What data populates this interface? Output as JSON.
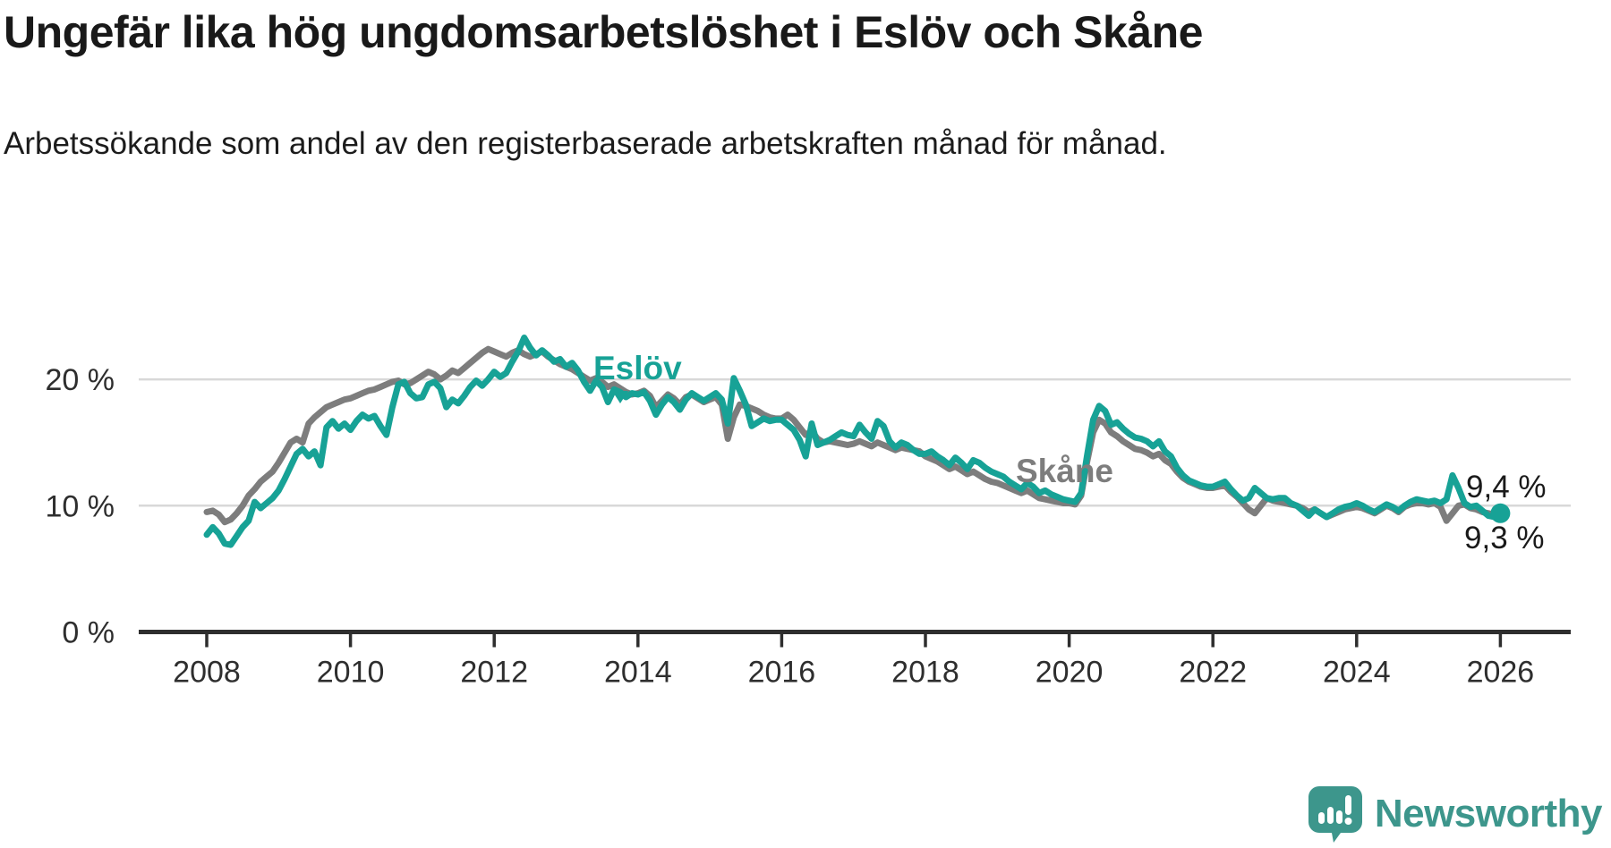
{
  "header": {
    "title": "Ungefär lika hög ungdomsarbetslöshet i Eslöv och Skåne",
    "subtitle": "Arbetssökande som andel av den registerbaserade arbetskraften månad för månad."
  },
  "annotations": {
    "eslov_label": "Eslöv",
    "skane_label": "Skåne",
    "end_value_eslov": "9,4 %",
    "end_value_skane": "9,3 %"
  },
  "footer": {
    "brand": "Newsworthy"
  },
  "chart_data": {
    "type": "line",
    "title": "Ungefär lika hög ungdomsarbetslöshet i Eslöv och Skåne",
    "xlabel": "",
    "ylabel": "Arbetssökande som andel av den registerbaserade arbetskraften",
    "x_start": "2008-01",
    "x_end": "2026-01",
    "frequency": "monthly",
    "x_ticks": [
      2008,
      2010,
      2012,
      2014,
      2016,
      2018,
      2020,
      2022,
      2024,
      2026
    ],
    "y_ticks": [
      {
        "value": 0,
        "label": "0 %"
      },
      {
        "value": 10,
        "label": "10 %"
      },
      {
        "value": 20,
        "label": "20 %"
      }
    ],
    "ylim": [
      0,
      25
    ],
    "grid": true,
    "legend_position": "inline-labels",
    "colors": {
      "eslov": "#17a296",
      "skane": "#7d7d7d",
      "grid": "#d8d8d8",
      "axis": "#2e2e2e",
      "value_label": "#1a1a1a",
      "brand": "#3d968c"
    },
    "series": [
      {
        "name": "Skåne",
        "color": "#7d7d7d",
        "end_dot": false,
        "end_value_label": "9,3 %",
        "values": [
          9.5,
          9.6,
          9.3,
          8.7,
          8.9,
          9.4,
          10.0,
          10.8,
          11.3,
          11.9,
          12.3,
          12.7,
          13.4,
          14.2,
          15.0,
          15.3,
          15.0,
          16.5,
          17.0,
          17.4,
          17.8,
          18.0,
          18.2,
          18.4,
          18.5,
          18.7,
          18.9,
          19.1,
          19.2,
          19.4,
          19.6,
          19.8,
          19.9,
          19.6,
          19.7,
          20.0,
          20.3,
          20.6,
          20.4,
          20.0,
          20.3,
          20.7,
          20.5,
          20.9,
          21.3,
          21.7,
          22.1,
          22.4,
          22.2,
          22.0,
          21.8,
          22.1,
          22.3,
          22.0,
          21.8,
          22.0,
          22.2,
          21.8,
          21.5,
          21.2,
          21.0,
          20.8,
          20.5,
          20.2,
          19.9,
          20.1,
          19.8,
          19.4,
          19.6,
          19.3,
          19.0,
          18.8,
          18.9,
          19.1,
          18.7,
          17.8,
          18.3,
          18.8,
          18.5,
          18.0,
          18.6,
          18.8,
          18.5,
          18.2,
          18.4,
          18.6,
          18.0,
          15.3,
          17.0,
          18.0,
          17.9,
          17.7,
          17.5,
          17.2,
          17.0,
          16.9,
          16.9,
          17.2,
          16.8,
          16.2,
          15.6,
          15.9,
          15.3,
          15.0,
          15.1,
          15.0,
          14.9,
          14.8,
          14.9,
          15.1,
          14.9,
          14.7,
          15.0,
          14.8,
          14.6,
          14.4,
          14.6,
          14.5,
          14.4,
          14.3,
          13.9,
          13.7,
          13.5,
          13.2,
          12.9,
          13.1,
          12.8,
          12.5,
          12.7,
          12.4,
          12.1,
          11.9,
          11.8,
          11.6,
          11.4,
          11.2,
          11.0,
          11.2,
          10.9,
          10.6,
          10.5,
          10.4,
          10.3,
          10.2,
          10.2,
          10.1,
          10.8,
          13.5,
          15.8,
          16.8,
          16.5,
          15.8,
          15.5,
          15.1,
          14.8,
          14.5,
          14.4,
          14.2,
          13.9,
          14.1,
          13.6,
          13.3,
          12.7,
          12.2,
          11.9,
          11.7,
          11.5,
          11.4,
          11.4,
          11.5,
          11.6,
          11.1,
          10.7,
          10.2,
          9.7,
          9.4,
          10.0,
          10.6,
          10.4,
          10.3,
          10.2,
          10.1,
          10.0,
          9.8,
          9.5,
          9.7,
          9.4,
          9.1,
          9.3,
          9.5,
          9.7,
          9.8,
          9.9,
          9.8,
          9.6,
          9.4,
          9.7,
          10.0,
          9.8,
          9.5,
          9.9,
          10.1,
          10.2,
          10.2,
          10.1,
          10.2,
          9.9,
          8.8,
          9.4,
          10.0,
          10.1,
          9.8,
          9.7,
          9.5,
          9.4,
          9.3,
          9.3
        ]
      },
      {
        "name": "Eslöv",
        "color": "#17a296",
        "end_dot": true,
        "end_value_label": "9,4 %",
        "values": [
          7.7,
          8.3,
          7.8,
          7.0,
          6.9,
          7.6,
          8.3,
          8.8,
          10.3,
          9.8,
          10.2,
          10.6,
          11.2,
          12.1,
          13.1,
          14.1,
          14.5,
          13.9,
          14.3,
          13.2,
          16.2,
          16.7,
          16.1,
          16.5,
          16.0,
          16.7,
          17.2,
          16.9,
          17.1,
          16.3,
          15.6,
          17.8,
          19.6,
          19.8,
          18.9,
          18.5,
          18.6,
          19.6,
          19.8,
          19.3,
          17.8,
          18.4,
          18.1,
          18.7,
          19.4,
          19.9,
          19.5,
          20.0,
          20.6,
          20.2,
          20.5,
          21.4,
          22.2,
          23.3,
          22.5,
          21.9,
          22.3,
          21.9,
          21.4,
          21.6,
          21.0,
          21.3,
          20.7,
          19.8,
          19.1,
          19.9,
          19.4,
          18.2,
          19.2,
          19.0,
          18.6,
          18.9,
          18.8,
          19.0,
          18.3,
          17.2,
          18.0,
          18.6,
          18.2,
          17.6,
          18.4,
          18.9,
          18.6,
          18.3,
          18.6,
          18.9,
          18.4,
          16.5,
          20.1,
          19.1,
          18.0,
          16.3,
          16.6,
          16.9,
          16.7,
          16.8,
          16.8,
          16.4,
          16.0,
          15.2,
          13.9,
          16.5,
          14.8,
          15.0,
          15.2,
          15.5,
          15.8,
          15.6,
          15.5,
          16.4,
          15.8,
          15.3,
          16.7,
          16.3,
          15.1,
          14.6,
          15.0,
          14.8,
          14.4,
          14.1,
          14.1,
          14.3,
          13.9,
          13.6,
          13.2,
          13.8,
          13.4,
          12.9,
          13.6,
          13.4,
          13.0,
          12.7,
          12.5,
          12.3,
          11.9,
          11.6,
          11.3,
          11.8,
          11.5,
          11.0,
          11.2,
          10.9,
          10.7,
          10.5,
          10.4,
          10.3,
          11.0,
          14.0,
          16.8,
          17.9,
          17.5,
          16.4,
          16.6,
          16.1,
          15.7,
          15.4,
          15.3,
          15.1,
          14.7,
          15.1,
          14.3,
          13.9,
          13.0,
          12.4,
          12.0,
          11.8,
          11.6,
          11.5,
          11.5,
          11.7,
          11.9,
          11.3,
          10.8,
          10.4,
          10.6,
          11.4,
          11.0,
          10.6,
          10.5,
          10.6,
          10.6,
          10.2,
          10.0,
          9.6,
          9.2,
          9.7,
          9.4,
          9.1,
          9.4,
          9.7,
          9.9,
          10.0,
          10.2,
          10.0,
          9.7,
          9.5,
          9.8,
          10.1,
          9.9,
          9.6,
          10.0,
          10.3,
          10.5,
          10.4,
          10.3,
          10.4,
          10.2,
          10.5,
          12.4,
          11.4,
          10.2,
          9.9,
          10.0,
          9.6,
          9.2,
          9.1,
          9.4
        ]
      }
    ]
  }
}
